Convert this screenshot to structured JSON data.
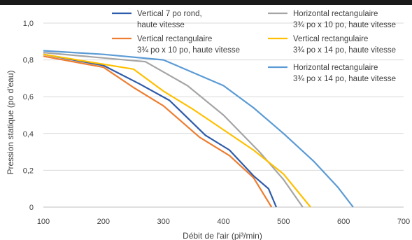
{
  "chart_data": {
    "type": "line",
    "xlabel": "Débit de l'air (pi³/min)",
    "ylabel": "Pression statique (po d'eau)",
    "xlim": [
      100,
      700
    ],
    "ylim": [
      0,
      1.0
    ],
    "xticks": [
      "100",
      "200",
      "300",
      "400",
      "500",
      "600",
      "700"
    ],
    "yticks": [
      "0",
      "0,2",
      "0,4",
      "0,6",
      "0,8",
      "1,0"
    ],
    "grid": "horizontal",
    "legend_position": "top",
    "series": [
      {
        "name": "Vertical 7 po rond, haute vitesse",
        "legend_lines": [
          "Vertical 7 po rond,",
          "haute vitesse"
        ],
        "color": "#2E5BAA",
        "x": [
          100,
          200,
          260,
          310,
          370,
          410,
          450,
          475,
          488
        ],
        "y": [
          0.83,
          0.77,
          0.67,
          0.58,
          0.39,
          0.31,
          0.17,
          0.1,
          0
        ]
      },
      {
        "name": "Vertical rectangulaire 3¾ po x 10 po, haute vitesse",
        "legend_lines": [
          "Vertical rectangulaire",
          "3¾ po x 10 po, haute vitesse"
        ],
        "color": "#ED7D31",
        "x": [
          100,
          200,
          250,
          300,
          360,
          410,
          450,
          480
        ],
        "y": [
          0.82,
          0.76,
          0.65,
          0.55,
          0.38,
          0.28,
          0.16,
          0
        ]
      },
      {
        "name": "Horizontal rectangulaire 3¾ po x 10 po, haute vitesse",
        "legend_lines": [
          "Horizontal rectangulaire",
          "3¾ po x 10 po, haute vitesse"
        ],
        "color": "#A5A5A5",
        "x": [
          100,
          270,
          340,
          400,
          460,
          500,
          532
        ],
        "y": [
          0.84,
          0.79,
          0.66,
          0.5,
          0.3,
          0.15,
          0
        ]
      },
      {
        "name": "Vertical rectangulaire 3¾ po x 14 po, haute vitesse",
        "legend_lines": [
          "Vertical rectangulaire",
          "3¾ po x 14 po, haute vitesse"
        ],
        "color": "#FFC000",
        "x": [
          100,
          250,
          300,
          350,
          400,
          450,
          500,
          545
        ],
        "y": [
          0.83,
          0.75,
          0.63,
          0.53,
          0.42,
          0.31,
          0.18,
          0
        ]
      },
      {
        "name": "Horizontal rectangulaire 3¾ po x 14 po, haute vitesse",
        "legend_lines": [
          "Horizontal rectangulaire",
          "3¾ po x 14 po, haute vitesse"
        ],
        "color": "#5B9BD5",
        "x": [
          100,
          200,
          300,
          400,
          450,
          500,
          550,
          590,
          616
        ],
        "y": [
          0.85,
          0.83,
          0.8,
          0.66,
          0.54,
          0.4,
          0.25,
          0.11,
          0
        ]
      }
    ]
  }
}
